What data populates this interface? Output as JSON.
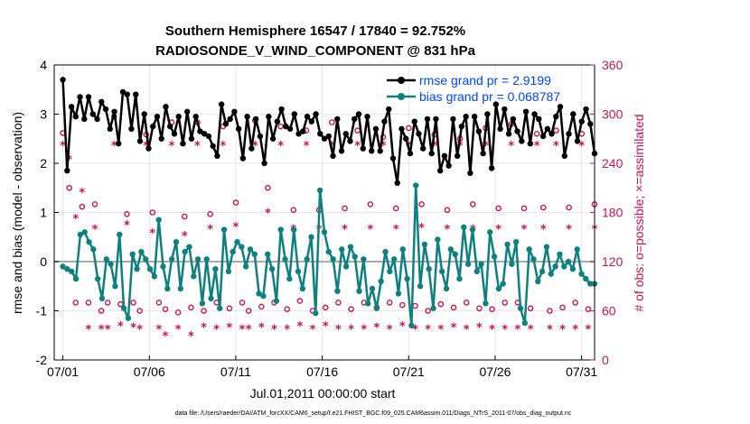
{
  "chart_data": {
    "type": "line",
    "title": "Southern Hemisphere 16547 / 17840 = 92.752%",
    "subtitle": "RADIOSONDE_V_WIND_COMPONENT @ 831 hPa",
    "xlabel": "Jul.01,2011 00:00:00 start",
    "ylabel_left": "rmse and bias (model - observation)",
    "ylabel_right": "# of obs: o=possible; ×=assimilated",
    "footnote": "data file: /Users/raeder/DAI/ATM_forcXX/CAM6_setup/f.e21.FHIST_BGC.f09_025.CAM6assim.011/Diags_NTrS_2011-07/obs_diag_output.nc",
    "xlim": [
      0.5,
      31.75
    ],
    "ylim_left": [
      -2,
      4
    ],
    "ylim_right": [
      0,
      360
    ],
    "x_ticks": [
      1,
      6,
      11,
      16,
      21,
      26,
      31
    ],
    "x_tick_labels": [
      "07/01",
      "07/06",
      "07/11",
      "07/16",
      "07/21",
      "07/26",
      "07/31"
    ],
    "y_ticks_left": [
      -2,
      -1,
      0,
      1,
      2,
      3,
      4
    ],
    "y_ticks_right": [
      0,
      60,
      120,
      180,
      240,
      300,
      360
    ],
    "grid": true,
    "legend_position": "top-right",
    "series": [
      {
        "name": "rmse grand pr = 2.9199",
        "axis": "left",
        "color": "#000000",
        "step_days": 0.25,
        "start": 1.0,
        "values": [
          3.7,
          1.85,
          3.15,
          2.95,
          3.35,
          2.9,
          3.35,
          3.0,
          2.9,
          3.25,
          3.1,
          2.7,
          3.05,
          2.4,
          3.45,
          3.4,
          2.7,
          3.4,
          2.45,
          3.0,
          2.3,
          2.75,
          2.95,
          2.5,
          3.15,
          2.75,
          2.6,
          2.95,
          2.4,
          3.05,
          2.5,
          2.95,
          2.65,
          2.6,
          2.55,
          2.35,
          2.15,
          3.2,
          2.8,
          2.9,
          3.05,
          2.7,
          2.1,
          2.95,
          2.3,
          2.9,
          2.55,
          2.0,
          2.95,
          2.5,
          2.85,
          3.1,
          2.75,
          2.7,
          3.0,
          2.6,
          2.65,
          2.95,
          2.85,
          3.0,
          2.6,
          2.5,
          2.55,
          2.15,
          2.9,
          2.25,
          2.6,
          2.45,
          2.9,
          3.0,
          2.3,
          2.95,
          2.25,
          2.7,
          2.25,
          2.85,
          3.1,
          2.1,
          1.6,
          2.7,
          2.5,
          2.2,
          2.85,
          2.6,
          2.3,
          2.9,
          2.2,
          2.9,
          1.85,
          2.15,
          1.95,
          2.9,
          2.15,
          2.75,
          2.95,
          1.8,
          2.95,
          2.65,
          2.2,
          3.0,
          1.9,
          3.2,
          2.7,
          3.1,
          2.6,
          2.9,
          2.65,
          2.45,
          3.05,
          2.4,
          3.0,
          2.9,
          2.55,
          2.7,
          2.6,
          2.95,
          3.15,
          2.15,
          2.6,
          3.0,
          2.45,
          2.85,
          3.1,
          2.8,
          2.2
        ]
      },
      {
        "name": "bias grand pr = 0.068787",
        "axis": "left",
        "color": "#0f8080",
        "step_days": 0.25,
        "start": 1.0,
        "values": [
          -0.1,
          -0.15,
          -0.2,
          -0.35,
          0.55,
          0.6,
          0.4,
          0.25,
          -0.35,
          -0.75,
          0.05,
          -0.05,
          -0.5,
          0.55,
          -0.95,
          -1.15,
          0.15,
          -0.15,
          0.2,
          0.05,
          -0.15,
          -0.3,
          0.85,
          -0.1,
          -0.55,
          0.05,
          0.4,
          -0.55,
          0.2,
          0.3,
          -0.3,
          0.05,
          -0.85,
          0.05,
          -0.75,
          -0.15,
          -0.95,
          0.65,
          -0.2,
          0.2,
          0.4,
          0.3,
          -0.1,
          0.25,
          0.15,
          -0.65,
          -0.7,
          0.15,
          -0.15,
          -0.8,
          0.65,
          0.05,
          -0.35,
          0.65,
          -0.2,
          -0.55,
          0.05,
          0.5,
          -1.05,
          1.45,
          0.6,
          0.2,
          0.05,
          -0.6,
          0.25,
          -0.1,
          0.3,
          0.1,
          -0.6,
          0.05,
          -0.85,
          -0.55,
          -0.95,
          -0.4,
          0.2,
          -0.2,
          0.05,
          -0.65,
          0.25,
          -0.35,
          -1.3,
          1.55,
          -0.5,
          0.35,
          -0.15,
          -0.95,
          0.45,
          -0.2,
          -0.55,
          0.25,
          0.15,
          -0.35,
          0.7,
          -0.05,
          0.65,
          -0.2,
          -0.05,
          -0.85,
          0.6,
          0.1,
          -0.55,
          -0.45,
          0.35,
          -0.05,
          0.4,
          -0.95,
          -1.25,
          0.25,
          0.05,
          -0.4,
          -0.2,
          0.3,
          -0.25,
          -0.1,
          0.15,
          -0.1,
          0.0,
          -0.15,
          0.25,
          -0.25,
          -0.35,
          -0.45,
          -0.45
        ]
      },
      {
        "name": "possible obs (o)",
        "axis": "right",
        "color": "#cc1155",
        "marker": "o",
        "values": [
          277,
          210,
          70,
          187,
          70,
          190,
          60,
          70,
          297,
          68,
          178,
          70,
          60,
          275,
          180,
          70,
          62,
          290,
          58,
          175,
          64,
          290,
          60,
          178,
          70,
          285,
          63,
          192,
          70,
          60,
          292,
          65,
          210,
          70,
          285,
          62,
          183,
          72,
          280,
          60,
          183,
          64,
          290,
          70,
          185,
          62,
          280,
          70,
          190,
          64,
          272,
          70,
          185,
          67,
          283,
          66,
          190,
          60,
          275,
          68,
          183,
          64,
          270,
          70,
          190,
          63,
          283,
          62,
          185,
          70,
          288,
          70,
          185,
          63,
          276,
          186,
          60,
          280,
          64,
          186,
          70,
          276,
          62,
          190
        ]
      },
      {
        "name": "assimilated obs (×)",
        "axis": "right",
        "color": "#cc1155",
        "marker": "*",
        "values": [
          262,
          245,
          173,
          205,
          38,
          160,
          38,
          38,
          262,
          42,
          165,
          40,
          38,
          262,
          155,
          38,
          30,
          262,
          38,
          152,
          30,
          262,
          40,
          160,
          38,
          262,
          40,
          163,
          38,
          38,
          262,
          40,
          180,
          38,
          262,
          38,
          160,
          42,
          262,
          38,
          160,
          42,
          262,
          38,
          160,
          38,
          262,
          38,
          160,
          40,
          262,
          38,
          160,
          42,
          262,
          38,
          162,
          38,
          262,
          38,
          160,
          40,
          262,
          38,
          160,
          40,
          262,
          38,
          160,
          38,
          262,
          38,
          160,
          38,
          262,
          160,
          38,
          262,
          38,
          160,
          38,
          262,
          38,
          160
        ]
      }
    ]
  }
}
